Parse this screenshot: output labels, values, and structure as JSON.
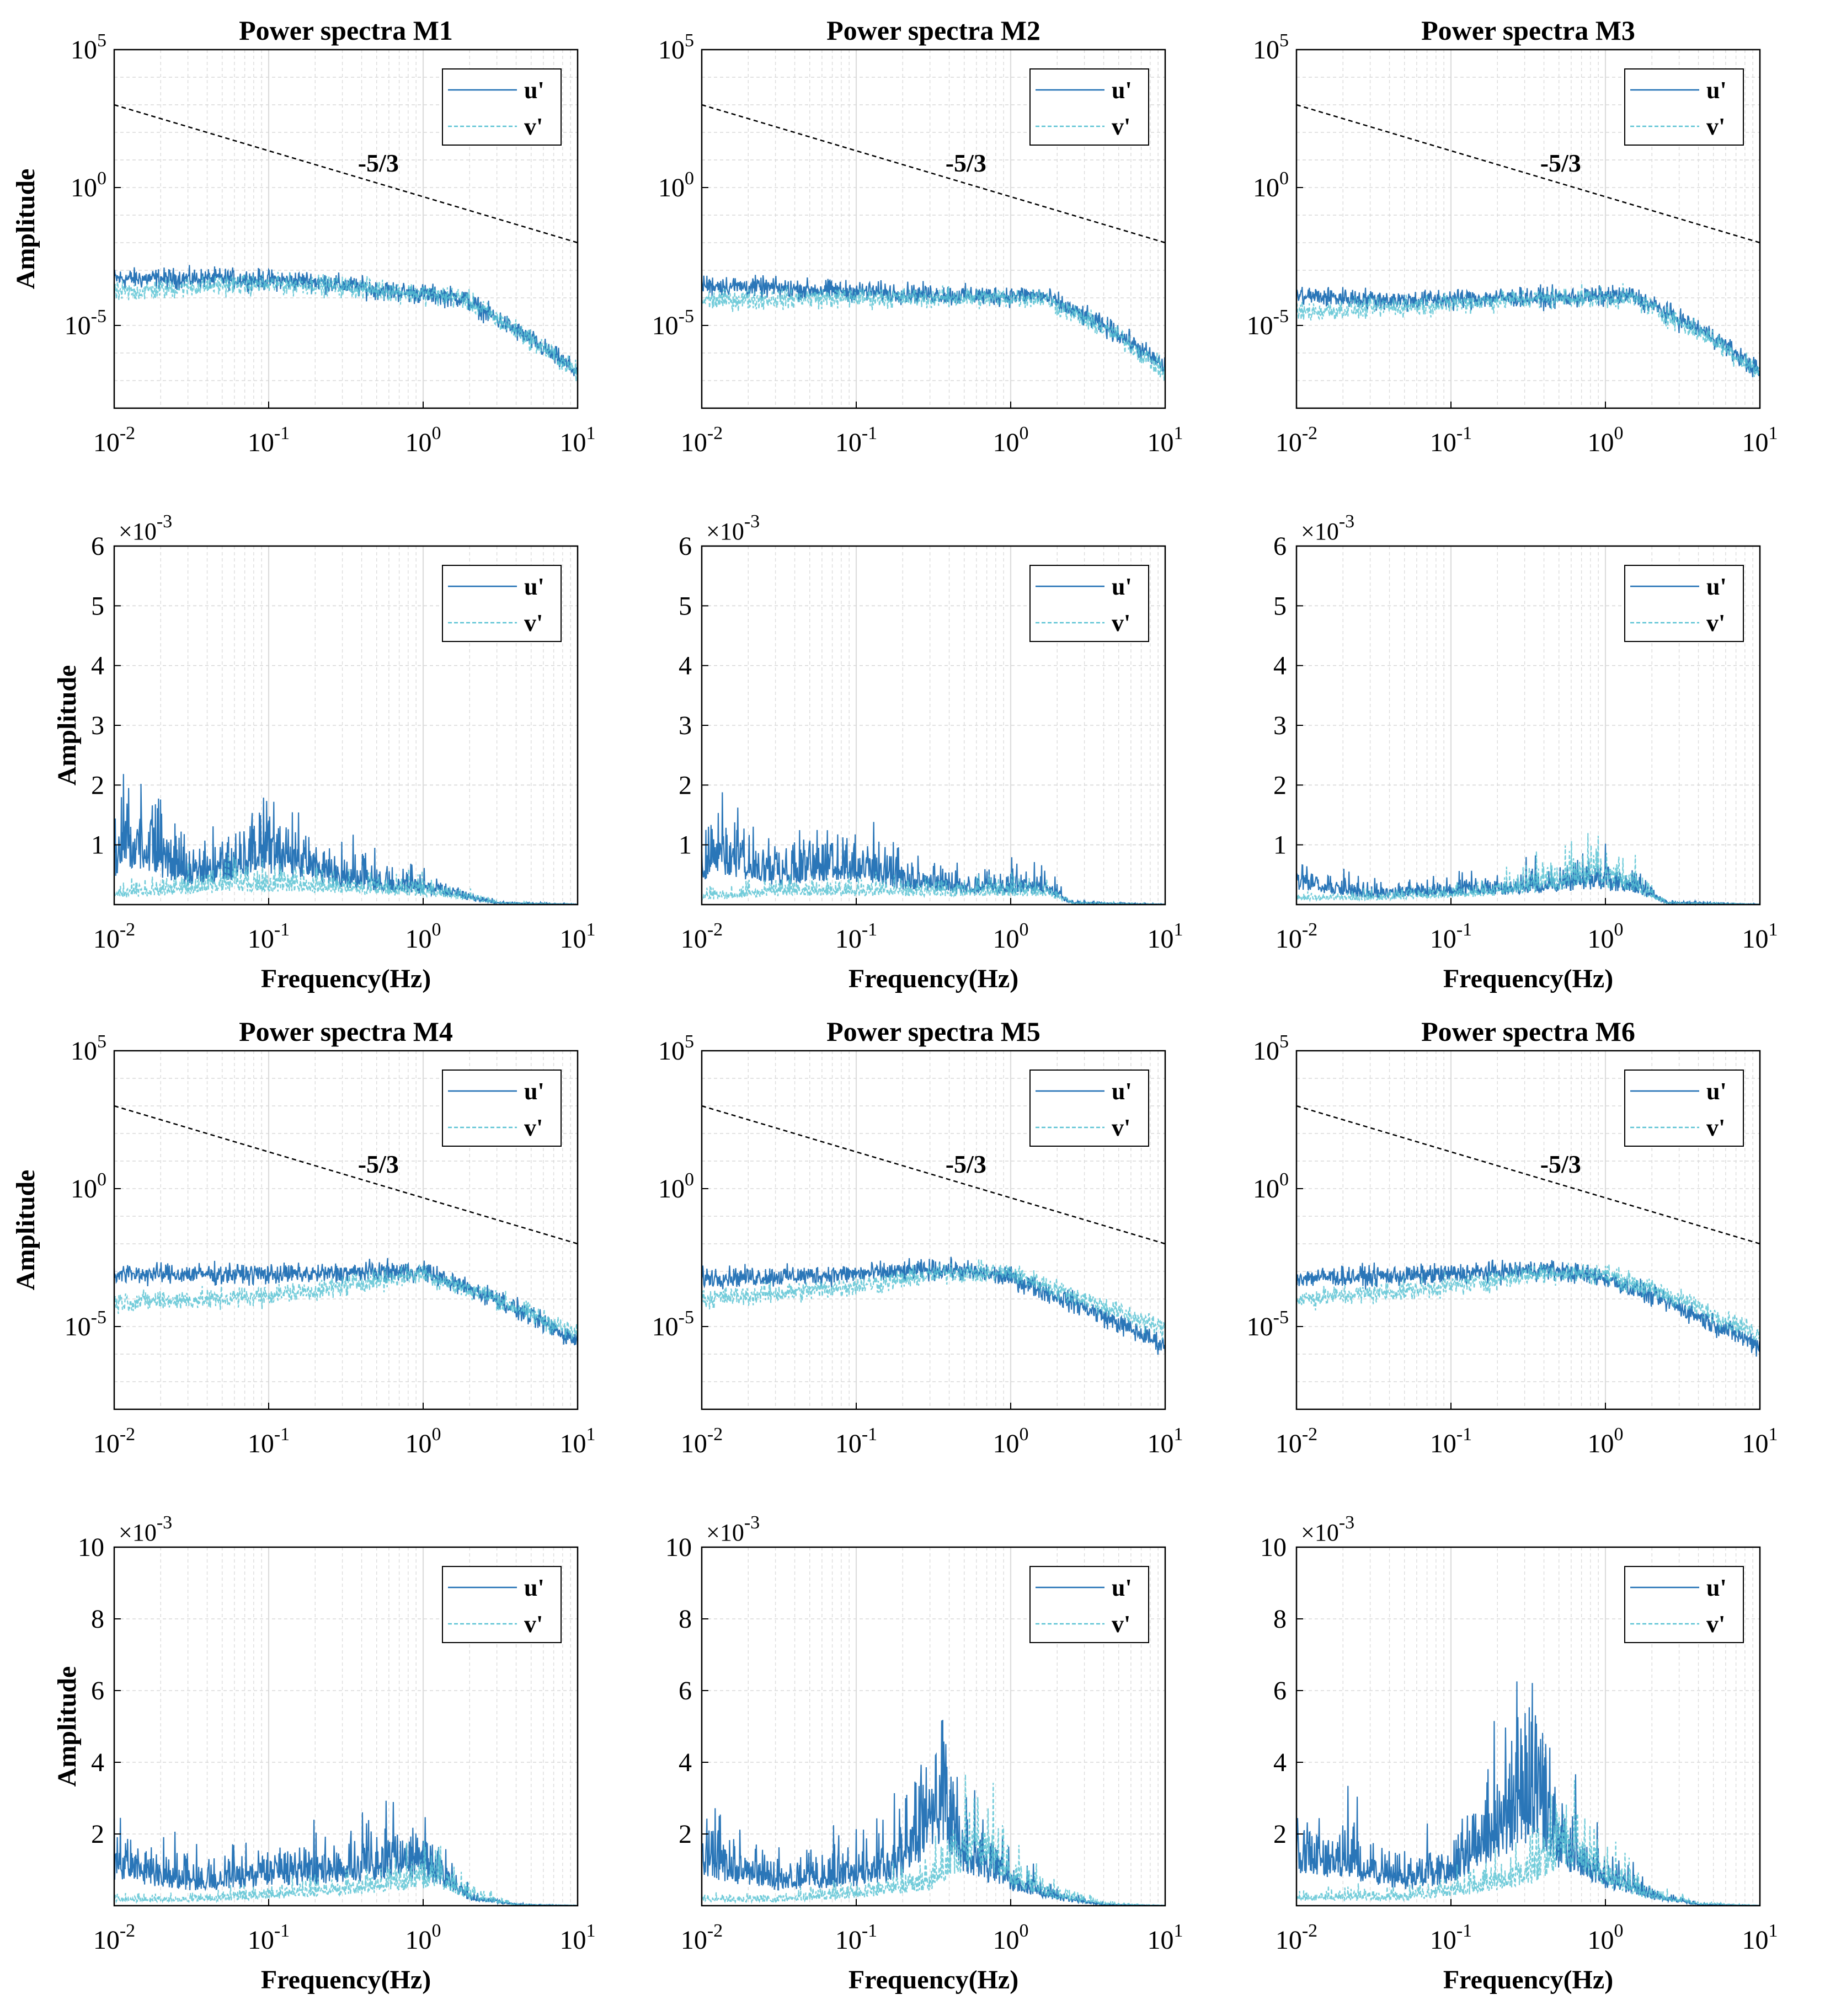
{
  "figure": {
    "background": "#ffffff",
    "colors": {
      "u": "#1f6fb4",
      "v": "#5bc3d4",
      "ref": "#000000",
      "grid": "#d0d0d0"
    }
  },
  "chart_data": [
    {
      "id": "m1-log",
      "type": "line",
      "scale": "loglog",
      "title": "Power spectra M1",
      "xlabel": "",
      "ylabel": "Amplitude",
      "xlim": [
        0.01,
        10
      ],
      "ylim": [
        1e-08,
        100000
      ],
      "xticks": [
        "10^-2",
        "10^-1",
        "10^0",
        "10^1"
      ],
      "yticks": [
        "10^-5",
        "10^0",
        "10^5"
      ],
      "legend": [
        "u'",
        "v'"
      ],
      "legend_loc": "top-right",
      "annotation": "-5/3",
      "ref_line": {
        "slope": -1.6667,
        "x": [
          0.01,
          10
        ],
        "y": [
          1000,
          0.01
        ]
      },
      "series": [
        {
          "name": "u'",
          "x": [
            0.01,
            0.05,
            0.2,
            0.5,
            1.8,
            5,
            10
          ],
          "y": [
            0.0005,
            0.0005,
            0.0004,
            0.0002,
            0.0001,
            3e-06,
            2e-07
          ]
        },
        {
          "name": "v'",
          "x": [
            0.01,
            0.05,
            0.2,
            0.5,
            1.8,
            5,
            10
          ],
          "y": [
            0.00015,
            0.0003,
            0.0003,
            0.0002,
            0.0001,
            3e-06,
            2e-07
          ]
        }
      ]
    },
    {
      "id": "m2-log",
      "type": "line",
      "scale": "loglog",
      "title": "Power spectra M2",
      "xlabel": "",
      "ylabel": "",
      "xlim": [
        0.01,
        10
      ],
      "ylim": [
        1e-08,
        100000
      ],
      "xticks": [
        "10^-2",
        "10^-1",
        "10^0",
        "10^1"
      ],
      "yticks": [
        "10^-5",
        "10^0",
        "10^5"
      ],
      "legend": [
        "u'",
        "v'"
      ],
      "legend_loc": "top-right",
      "annotation": "-5/3",
      "ref_line": {
        "slope": -1.6667,
        "x": [
          0.01,
          10
        ],
        "y": [
          1000,
          0.01
        ]
      },
      "series": [
        {
          "name": "u'",
          "x": [
            0.01,
            0.05,
            0.2,
            0.5,
            1.6,
            5,
            10
          ],
          "y": [
            0.0003,
            0.0002,
            0.00015,
            0.00012,
            0.00012,
            5e-06,
            3e-07
          ]
        },
        {
          "name": "v'",
          "x": [
            0.01,
            0.05,
            0.2,
            0.5,
            1.6,
            5,
            10
          ],
          "y": [
            8e-05,
            0.0001,
            0.0001,
            0.0001,
            0.0001,
            4e-06,
            2e-07
          ]
        }
      ]
    },
    {
      "id": "m3-log",
      "type": "line",
      "scale": "loglog",
      "title": "Power spectra M3",
      "xlabel": "",
      "ylabel": "",
      "xlim": [
        0.01,
        10
      ],
      "ylim": [
        1e-08,
        100000
      ],
      "xticks": [
        "10^-2",
        "10^-1",
        "10^0",
        "10^1"
      ],
      "yticks": [
        "10^-5",
        "10^0",
        "10^5"
      ],
      "legend": [
        "u'",
        "v'"
      ],
      "legend_loc": "top-right",
      "annotation": "-5/3",
      "ref_line": {
        "slope": -1.6667,
        "x": [
          0.01,
          10
        ],
        "y": [
          1000,
          0.01
        ]
      },
      "series": [
        {
          "name": "u'",
          "x": [
            0.01,
            0.05,
            0.2,
            0.5,
            1.5,
            5,
            10
          ],
          "y": [
            0.00012,
            8e-05,
            0.0001,
            0.0001,
            0.00012,
            4e-06,
            2e-07
          ]
        },
        {
          "name": "v'",
          "x": [
            0.01,
            0.05,
            0.2,
            0.5,
            1.5,
            5,
            10
          ],
          "y": [
            3e-05,
            5e-05,
            8e-05,
            0.0001,
            0.0001,
            3e-06,
            2e-07
          ]
        }
      ]
    },
    {
      "id": "m1-lin",
      "type": "line",
      "scale": "semilogx",
      "title": "",
      "xlabel": "Frequency(Hz)",
      "ylabel": "Amplitude",
      "xlim": [
        0.01,
        10
      ],
      "ylim": [
        0,
        0.006
      ],
      "xticks": [
        "10^-2",
        "10^-1",
        "10^0",
        "10^1"
      ],
      "yticks": [
        "1",
        "2",
        "3",
        "4",
        "5",
        "6"
      ],
      "multiplier": "×10^-3",
      "legend": [
        "u'",
        "v'"
      ],
      "legend_loc": "top-right",
      "series": [
        {
          "name": "u'",
          "x": [
            0.01,
            0.012,
            0.03,
            0.06,
            0.1,
            0.3,
            1,
            2,
            3,
            10
          ],
          "y": [
            0.0012,
            0.0018,
            0.0009,
            0.0011,
            0.0015,
            0.0008,
            0.0005,
            0.0002,
            5e-05,
            1e-05
          ]
        },
        {
          "name": "v'",
          "x": [
            0.01,
            0.03,
            0.06,
            0.1,
            0.3,
            1,
            2,
            3,
            10
          ],
          "y": [
            0.0003,
            0.0005,
            0.0006,
            0.0006,
            0.0005,
            0.0004,
            0.0002,
            5e-05,
            1e-05
          ]
        }
      ]
    },
    {
      "id": "m2-lin",
      "type": "line",
      "scale": "semilogx",
      "title": "",
      "xlabel": "Frequency(Hz)",
      "ylabel": "",
      "xlim": [
        0.01,
        10
      ],
      "ylim": [
        0,
        0.006
      ],
      "xticks": [
        "10^-2",
        "10^-1",
        "10^0",
        "10^1"
      ],
      "yticks": [
        "1",
        "2",
        "3",
        "4",
        "5",
        "6"
      ],
      "multiplier": "×10^-3",
      "legend": [
        "u'",
        "v'"
      ],
      "legend_loc": "top-right",
      "series": [
        {
          "name": "u'",
          "x": [
            0.01,
            0.012,
            0.03,
            0.08,
            0.2,
            0.5,
            1,
            1.7,
            2.5,
            10
          ],
          "y": [
            0.001,
            0.0015,
            0.0009,
            0.0012,
            0.0007,
            0.0005,
            0.0005,
            0.0005,
            5e-05,
            1e-05
          ]
        },
        {
          "name": "v'",
          "x": [
            0.01,
            0.03,
            0.08,
            0.2,
            0.5,
            1,
            1.7,
            2.5,
            10
          ],
          "y": [
            0.0002,
            0.0004,
            0.0004,
            0.0004,
            0.0004,
            0.0004,
            0.0004,
            5e-05,
            1e-05
          ]
        }
      ]
    },
    {
      "id": "m3-lin",
      "type": "line",
      "scale": "semilogx",
      "title": "",
      "xlabel": "Frequency(Hz)",
      "ylabel": "",
      "xlim": [
        0.01,
        10
      ],
      "ylim": [
        0,
        0.006
      ],
      "xticks": [
        "10^-2",
        "10^-1",
        "10^0",
        "10^1"
      ],
      "yticks": [
        "1",
        "2",
        "3",
        "4",
        "5",
        "6"
      ],
      "multiplier": "×10^-3",
      "legend": [
        "u'",
        "v'"
      ],
      "legend_loc": "top-right",
      "series": [
        {
          "name": "u'",
          "x": [
            0.01,
            0.03,
            0.1,
            0.3,
            0.8,
            1.5,
            2.5,
            10
          ],
          "y": [
            0.0007,
            0.0003,
            0.0004,
            0.0005,
            0.0007,
            0.0006,
            5e-05,
            1e-05
          ]
        },
        {
          "name": "v'",
          "x": [
            0.01,
            0.03,
            0.1,
            0.3,
            0.8,
            1.5,
            2.5,
            10
          ],
          "y": [
            0.0002,
            0.0002,
            0.0003,
            0.0005,
            0.0009,
            0.0006,
            5e-05,
            1e-05
          ]
        }
      ]
    },
    {
      "id": "m4-log",
      "type": "line",
      "scale": "loglog",
      "title": "Power spectra M4",
      "xlabel": "",
      "ylabel": "Amplitude",
      "xlim": [
        0.01,
        10
      ],
      "ylim": [
        1e-08,
        100000
      ],
      "xticks": [
        "10^-2",
        "10^-1",
        "10^0",
        "10^1"
      ],
      "yticks": [
        "10^-5",
        "10^0",
        "10^5"
      ],
      "legend": [
        "u'",
        "v'"
      ],
      "legend_loc": "top-right",
      "annotation": "-5/3",
      "ref_line": {
        "slope": -1.6667,
        "x": [
          0.01,
          10
        ],
        "y": [
          1000,
          0.01
        ]
      },
      "series": [
        {
          "name": "u'",
          "x": [
            0.01,
            0.05,
            0.2,
            0.5,
            1.0,
            3,
            10
          ],
          "y": [
            0.0008,
            0.0008,
            0.0008,
            0.001,
            0.001,
            0.0001,
            3e-06
          ]
        },
        {
          "name": "v'",
          "x": [
            0.01,
            0.05,
            0.2,
            0.5,
            1.0,
            3,
            10
          ],
          "y": [
            8e-05,
            0.0001,
            0.0002,
            0.0005,
            0.0008,
            0.0001,
            5e-06
          ]
        }
      ]
    },
    {
      "id": "m5-log",
      "type": "line",
      "scale": "loglog",
      "title": "Power spectra M5",
      "xlabel": "",
      "ylabel": "",
      "xlim": [
        0.01,
        10
      ],
      "ylim": [
        1e-08,
        100000
      ],
      "xticks": [
        "10^-2",
        "10^-1",
        "10^0",
        "10^1"
      ],
      "yticks": [
        "10^-5",
        "10^0",
        "10^5"
      ],
      "legend": [
        "u'",
        "v'"
      ],
      "legend_loc": "top-right",
      "annotation": "-5/3",
      "ref_line": {
        "slope": -1.6667,
        "x": [
          0.01,
          10
        ],
        "y": [
          1000,
          0.01
        ]
      },
      "series": [
        {
          "name": "u'",
          "x": [
            0.01,
            0.05,
            0.15,
            0.4,
            1.0,
            3,
            10
          ],
          "y": [
            0.0006,
            0.0007,
            0.0009,
            0.0012,
            0.0006,
            5e-05,
            2e-06
          ]
        },
        {
          "name": "v'",
          "x": [
            0.01,
            0.05,
            0.15,
            0.4,
            1.0,
            3,
            10
          ],
          "y": [
            0.0001,
            0.0002,
            0.0004,
            0.0009,
            0.0009,
            0.0001,
            8e-06
          ]
        }
      ]
    },
    {
      "id": "m6-log",
      "type": "line",
      "scale": "loglog",
      "title": "Power spectra M6",
      "xlabel": "",
      "ylabel": "",
      "xlim": [
        0.01,
        10
      ],
      "ylim": [
        1e-08,
        100000
      ],
      "xticks": [
        "10^-2",
        "10^-1",
        "10^0",
        "10^1"
      ],
      "yticks": [
        "10^-5",
        "10^0",
        "10^5"
      ],
      "legend": [
        "u'",
        "v'"
      ],
      "legend_loc": "top-right",
      "annotation": "-5/3",
      "ref_line": {
        "slope": -1.6667,
        "x": [
          0.01,
          10
        ],
        "y": [
          1000,
          0.01
        ]
      },
      "series": [
        {
          "name": "u'",
          "x": [
            0.01,
            0.05,
            0.15,
            0.4,
            1.0,
            3,
            10
          ],
          "y": [
            0.0006,
            0.0007,
            0.0009,
            0.0012,
            0.0006,
            5e-05,
            2e-06
          ]
        },
        {
          "name": "v'",
          "x": [
            0.01,
            0.05,
            0.15,
            0.4,
            1.0,
            3,
            10
          ],
          "y": [
            0.0001,
            0.0002,
            0.0004,
            0.0009,
            0.0008,
            0.0001,
            5e-06
          ]
        }
      ]
    },
    {
      "id": "m4-lin",
      "type": "line",
      "scale": "semilogx",
      "title": "",
      "xlabel": "Frequency(Hz)",
      "ylabel": "Amplitude",
      "xlim": [
        0.01,
        10
      ],
      "ylim": [
        0,
        0.01
      ],
      "xticks": [
        "10^-2",
        "10^-1",
        "10^0",
        "10^1"
      ],
      "yticks": [
        "2",
        "4",
        "6",
        "8",
        "10"
      ],
      "multiplier": "×10^-3",
      "legend": [
        "u'",
        "v'"
      ],
      "legend_loc": "top-right",
      "series": [
        {
          "name": "u'",
          "x": [
            0.01,
            0.03,
            0.1,
            0.3,
            0.8,
            1.2,
            2,
            4,
            10
          ],
          "y": [
            0.002,
            0.0012,
            0.0015,
            0.0018,
            0.0022,
            0.0018,
            0.0004,
            5e-05,
            1e-05
          ]
        },
        {
          "name": "v'",
          "x": [
            0.01,
            0.03,
            0.1,
            0.3,
            0.8,
            1.2,
            2,
            4,
            10
          ],
          "y": [
            0.0003,
            0.0003,
            0.0005,
            0.0008,
            0.0012,
            0.0015,
            0.0005,
            5e-05,
            1e-05
          ]
        }
      ]
    },
    {
      "id": "m5-lin",
      "type": "line",
      "scale": "semilogx",
      "title": "",
      "xlabel": "Frequency(Hz)",
      "ylabel": "",
      "xlim": [
        0.01,
        10
      ],
      "ylim": [
        0,
        0.01
      ],
      "xticks": [
        "10^-2",
        "10^-1",
        "10^0",
        "10^1"
      ],
      "yticks": [
        "2",
        "4",
        "6",
        "8",
        "10"
      ],
      "multiplier": "×10^-3",
      "legend": [
        "u'",
        "v'"
      ],
      "legend_loc": "top-right",
      "series": [
        {
          "name": "u'",
          "x": [
            0.01,
            0.03,
            0.1,
            0.2,
            0.35,
            0.5,
            1,
            2,
            4,
            10
          ],
          "y": [
            0.0022,
            0.0012,
            0.0015,
            0.0022,
            0.005,
            0.0025,
            0.0012,
            0.0004,
            5e-05,
            1e-05
          ]
        },
        {
          "name": "v'",
          "x": [
            0.01,
            0.03,
            0.1,
            0.3,
            0.6,
            1,
            2,
            4,
            10
          ],
          "y": [
            0.0003,
            0.0003,
            0.0006,
            0.0012,
            0.0033,
            0.0015,
            0.0005,
            0.0001,
            1e-05
          ]
        }
      ]
    },
    {
      "id": "m6-lin",
      "type": "line",
      "scale": "semilogx",
      "title": "",
      "xlabel": "Frequency(Hz)",
      "ylabel": "",
      "xlim": [
        0.01,
        10
      ],
      "ylim": [
        0,
        0.01
      ],
      "xticks": [
        "10^-2",
        "10^-1",
        "10^0",
        "10^1"
      ],
      "yticks": [
        "2",
        "4",
        "6",
        "8",
        "10"
      ],
      "multiplier": "×10^-3",
      "legend": [
        "u'",
        "v'"
      ],
      "legend_loc": "top-right",
      "series": [
        {
          "name": "u'",
          "x": [
            0.01,
            0.02,
            0.05,
            0.1,
            0.2,
            0.35,
            0.5,
            1,
            2,
            4,
            10
          ],
          "y": [
            0.0024,
            0.0022,
            0.0012,
            0.0018,
            0.0035,
            0.0052,
            0.003,
            0.0014,
            0.0005,
            5e-05,
            1e-05
          ]
        },
        {
          "name": "v'",
          "x": [
            0.01,
            0.05,
            0.1,
            0.3,
            0.6,
            1,
            2,
            4,
            10
          ],
          "y": [
            0.0004,
            0.0004,
            0.0007,
            0.0015,
            0.0032,
            0.0015,
            0.0005,
            0.0001,
            1e-05
          ]
        }
      ]
    }
  ]
}
